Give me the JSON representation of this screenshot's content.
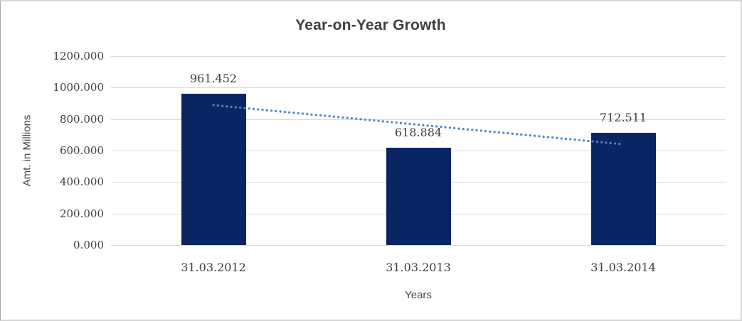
{
  "chart_data": {
    "type": "bar",
    "title": "Year-on-Year Growth",
    "xlabel": "Years",
    "ylabel": "Amt. in Millions",
    "categories": [
      "31.03.2012",
      "31.03.2013",
      "31.03.2014"
    ],
    "values": [
      961.452,
      618.884,
      712.511
    ],
    "data_labels": [
      "961.452",
      "618.884",
      "712.511"
    ],
    "ylim": [
      0,
      1200
    ],
    "ytick_step": 200,
    "ytick_labels": [
      "0.000",
      "200.000",
      "400.000",
      "600.000",
      "800.000",
      "1000.000",
      "1200.000"
    ],
    "grid": true,
    "legend": "none",
    "bar_color": "#0a2563",
    "gridline_color": "#d9d9d9",
    "text_color": "#3d3d3d",
    "trendline": {
      "type": "linear",
      "style": "dotted",
      "color": "#4f86c6",
      "fit_values_at_categories": [
        888.753,
        764.282,
        639.812
      ]
    }
  }
}
